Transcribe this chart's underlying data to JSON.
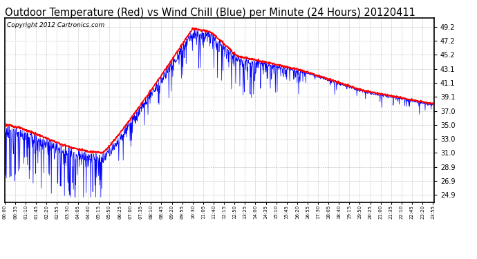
{
  "title": "Outdoor Temperature (Red) vs Wind Chill (Blue) per Minute (24 Hours) 20120411",
  "copyright": "Copyright 2012 Cartronics.com",
  "ylim": [
    23.8,
    50.5
  ],
  "yticks": [
    24.9,
    26.9,
    28.9,
    31.0,
    33.0,
    35.0,
    37.0,
    39.1,
    41.1,
    43.1,
    45.2,
    47.2,
    49.2
  ],
  "bg_color": "#ffffff",
  "grid_color": "#aaaaaa",
  "title_fontsize": 10.5,
  "copyright_fontsize": 6.5,
  "red_lw": 1.2,
  "blue_lw": 0.5
}
